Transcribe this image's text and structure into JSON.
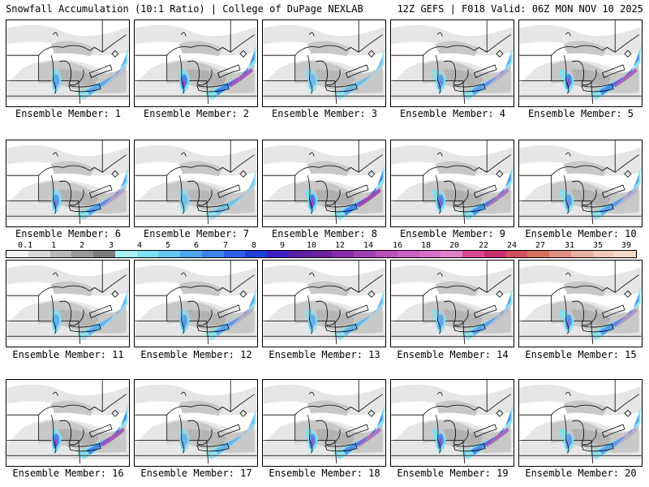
{
  "header": {
    "left": "Snowfall Accumulation (10:1 Ratio) | College of DuPage NEXLAB",
    "right": "12Z GEFS | F018 Valid: 06Z MON NOV 10 2025"
  },
  "panels": [
    {
      "label": "Ensemble Member: 1",
      "intensity": 0.55
    },
    {
      "label": "Ensemble Member: 2",
      "intensity": 0.9
    },
    {
      "label": "Ensemble Member: 3",
      "intensity": 0.35
    },
    {
      "label": "Ensemble Member: 4",
      "intensity": 0.6
    },
    {
      "label": "Ensemble Member: 5",
      "intensity": 0.85
    },
    {
      "label": "Ensemble Member: 6",
      "intensity": 0.65
    },
    {
      "label": "Ensemble Member: 7",
      "intensity": 0.3
    },
    {
      "label": "Ensemble Member: 8",
      "intensity": 0.95
    },
    {
      "label": "Ensemble Member: 9",
      "intensity": 0.8
    },
    {
      "label": "Ensemble Member: 10",
      "intensity": 0.6
    },
    {
      "label": "Ensemble Member: 11",
      "intensity": 0.5
    },
    {
      "label": "Ensemble Member: 12",
      "intensity": 0.6
    },
    {
      "label": "Ensemble Member: 13",
      "intensity": 0.45
    },
    {
      "label": "Ensemble Member: 14",
      "intensity": 0.55
    },
    {
      "label": "Ensemble Member: 15",
      "intensity": 0.7
    },
    {
      "label": "Ensemble Member: 16",
      "intensity": 0.9
    },
    {
      "label": "Ensemble Member: 17",
      "intensity": 0.45
    },
    {
      "label": "Ensemble Member: 18",
      "intensity": 0.8
    },
    {
      "label": "Ensemble Member: 19",
      "intensity": 0.85
    },
    {
      "label": "Ensemble Member: 20",
      "intensity": 0.6
    }
  ],
  "colorbar": {
    "labels": [
      "0.1",
      "1",
      "2",
      "3",
      "4",
      "5",
      "6",
      "7",
      "8",
      "9",
      "10",
      "12",
      "14",
      "16",
      "18",
      "20",
      "22",
      "24",
      "27",
      "31",
      "35",
      "39"
    ],
    "colors": [
      "#f4f4f4",
      "#d8d8d8",
      "#b8b8b8",
      "#989898",
      "#7c7c7c",
      "#a8f0f0",
      "#7ee0f0",
      "#60c8f0",
      "#4aa6f0",
      "#3c82f0",
      "#2c5ef0",
      "#2040e0",
      "#4020c0",
      "#5a20a8",
      "#7020a0",
      "#8a2aa8",
      "#a040b0",
      "#b850b8",
      "#c860c0",
      "#d870c8",
      "#e080c8",
      "#d84890",
      "#c83070",
      "#d05060",
      "#d87060",
      "#e09080",
      "#e8b0a0",
      "#f0c8b8",
      "#f4d8c8"
    ]
  }
}
